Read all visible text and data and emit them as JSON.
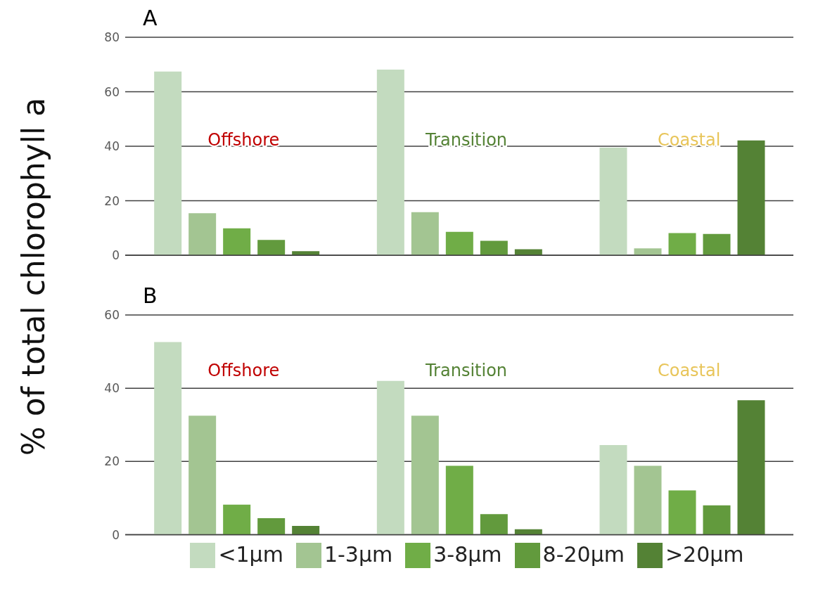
{
  "chart_data": [
    {
      "type": "bar",
      "title": "A",
      "ylabel": "% of total chlorophyll a",
      "categories": [
        "Offshore",
        "Transition",
        "Coastal"
      ],
      "ylim": [
        0,
        80
      ],
      "yticks": [
        0,
        20,
        40,
        60,
        80
      ],
      "grid": "y",
      "series": [
        {
          "color": "#c3dbbf",
          "values": [
            67.4,
            68.1,
            39.5
          ]
        },
        {
          "color": "#a3c592",
          "values": [
            15.4,
            15.8,
            2.5
          ]
        },
        {
          "color": "#70ad47",
          "values": [
            9.9,
            8.6,
            8.1
          ]
        },
        {
          "color": "#629a3d",
          "values": [
            5.6,
            5.3,
            7.8
          ]
        },
        {
          "color": "#548235",
          "values": [
            1.5,
            2.2,
            42.1
          ]
        }
      ]
    },
    {
      "type": "bar",
      "title": "B",
      "categories": [
        "Offshore",
        "Transition",
        "Coastal"
      ],
      "ylim": [
        0,
        60
      ],
      "yticks": [
        0,
        20,
        40,
        60
      ],
      "grid": "y",
      "legend": "bottom",
      "series": [
        {
          "name": "<1µm",
          "color": "#c3dbbf",
          "values": [
            52.6,
            42.0,
            24.5
          ]
        },
        {
          "name": "1-3µm",
          "color": "#a3c592",
          "values": [
            32.5,
            32.5,
            18.8
          ]
        },
        {
          "name": "3-8µm",
          "color": "#70ad47",
          "values": [
            8.2,
            18.8,
            12.1
          ]
        },
        {
          "name": "8-20µm",
          "color": "#629a3d",
          "values": [
            4.5,
            5.6,
            8.0
          ]
        },
        {
          "name": ">20µm",
          "color": "#548235",
          "values": [
            2.4,
            1.5,
            36.7
          ]
        }
      ]
    }
  ]
}
